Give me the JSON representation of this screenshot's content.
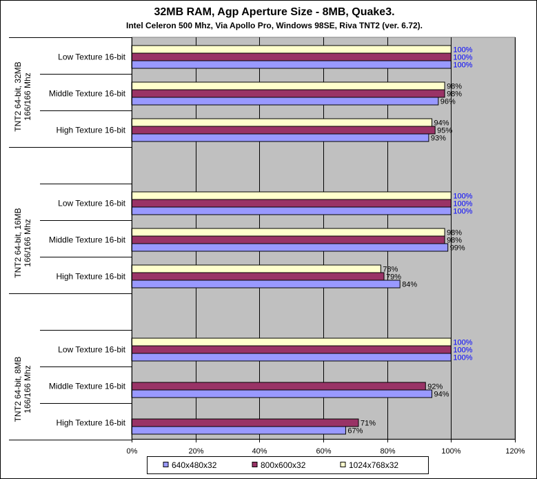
{
  "chart_data": {
    "type": "bar",
    "orientation": "horizontal",
    "title": "32MB RAM,  Agp Aperture Size - 8MB, Quake3.",
    "subtitle": "Intel Celeron 500 Mhz, Via Apollo Pro, Windows 98SE, Riva TNT2 (ver. 6.72).",
    "xlabel": "",
    "ylabel": "",
    "xlim": [
      0,
      120
    ],
    "x_ticks": [
      "0%",
      "20%",
      "40%",
      "60%",
      "80%",
      "100%",
      "120%"
    ],
    "grid": true,
    "legend_position": "bottom",
    "series_names": [
      "640x480x32",
      "800x600x32",
      "1024x768x32"
    ],
    "series_colors": [
      "#9999ff",
      "#993366",
      "#ffffcc"
    ],
    "groups": [
      {
        "label_lines": [
          "TNT2 64-bit, 32MB",
          "166/166 Mhz"
        ],
        "categories": [
          {
            "label": "Low Texture 16-bit",
            "values": [
              100,
              100,
              100
            ],
            "labels": [
              "100%",
              "100%",
              "100%"
            ]
          },
          {
            "label": "Middle Texture 16-bit",
            "values": [
              96,
              98,
              98
            ],
            "labels": [
              "96%",
              "98%",
              "98%"
            ]
          },
          {
            "label": "High Texture 16-bit",
            "values": [
              93,
              95,
              94
            ],
            "labels": [
              "93%",
              "95%",
              "94%"
            ]
          }
        ]
      },
      {
        "label_lines": [
          "TNT2 64-bit, 16MB",
          "166/166 Mhz"
        ],
        "categories": [
          {
            "label": "Low Texture 16-bit",
            "values": [
              100,
              100,
              100
            ],
            "labels": [
              "100%",
              "100%",
              "100%"
            ]
          },
          {
            "label": "Middle Texture 16-bit",
            "values": [
              99,
              98,
              98
            ],
            "labels": [
              "99%",
              "98%",
              "98%"
            ]
          },
          {
            "label": "High Texture 16-bit",
            "values": [
              84,
              79,
              78
            ],
            "labels": [
              "84%",
              "79%",
              "78%"
            ]
          }
        ]
      },
      {
        "label_lines": [
          "TNT2 64-bit, 8MB",
          "166/166 Mhz"
        ],
        "categories": [
          {
            "label": "Low Texture 16-bit",
            "values": [
              100,
              100,
              100
            ],
            "labels": [
              "100%",
              "100%",
              "100%"
            ]
          },
          {
            "label": "Middle Texture 16-bit",
            "values": [
              94,
              92,
              null
            ],
            "labels": [
              "94%",
              "92%",
              null
            ]
          },
          {
            "label": "High Texture 16-bit",
            "values": [
              67,
              71,
              null
            ],
            "labels": [
              "67%",
              "71%",
              null
            ]
          }
        ]
      }
    ],
    "label_colors": {
      "full": "#0000ff",
      "normal": "#000000"
    }
  }
}
